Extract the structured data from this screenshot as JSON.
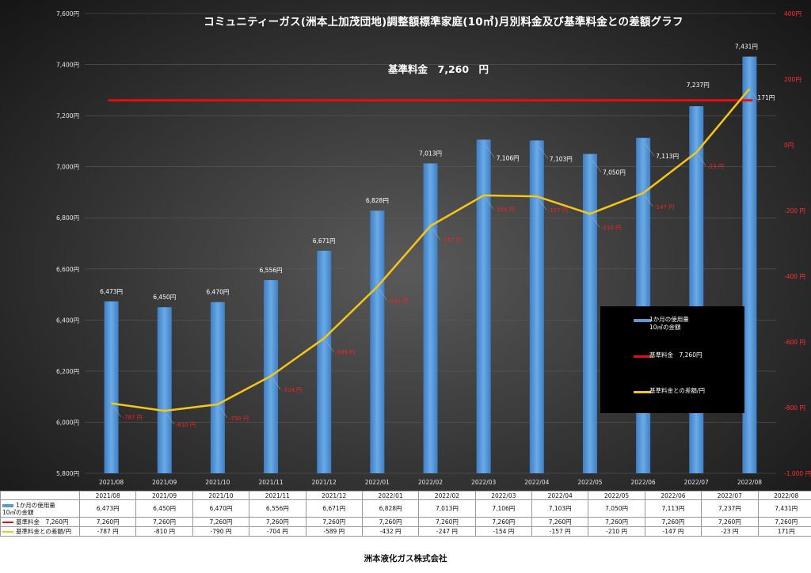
{
  "chart_data": {
    "type": "bar",
    "title": "コミュニティーガス(洲本上加茂団地)調整額標準家庭(10㎥)月別料金及び基準料金との差額グラフ",
    "annotation": "基準料金　7,260　円",
    "categories": [
      "2021/08",
      "2021/09",
      "2021/10",
      "2021/11",
      "2021/12",
      "2022/01",
      "2022/02",
      "2022/03",
      "2022/04",
      "2022/05",
      "2022/06",
      "2022/07",
      "2022/08"
    ],
    "series": [
      {
        "name": "1か月の使用量 10㎥の金額",
        "type": "bar",
        "axis": "left",
        "color": "#5b9bd5",
        "values": [
          6473,
          6450,
          6470,
          6556,
          6671,
          6828,
          7013,
          7106,
          7103,
          7050,
          7113,
          7237,
          7431
        ],
        "labels": [
          "6,473円",
          "6,450円",
          "6,470円",
          "6,556円",
          "6,671円",
          "6,828円",
          "7,013円",
          "7,106円",
          "7,103円",
          "7,050円",
          "7,113円",
          "7,237円",
          "7,431円"
        ]
      },
      {
        "name": "基準料金　7,260円",
        "type": "line",
        "axis": "left",
        "color": "#e01010",
        "values": [
          7260,
          7260,
          7260,
          7260,
          7260,
          7260,
          7260,
          7260,
          7260,
          7260,
          7260,
          7260,
          7260
        ],
        "labels": [
          "7,260円",
          "7,260円",
          "7,260円",
          "7,260円",
          "7,260円",
          "7,260円",
          "7,260円",
          "7,260円",
          "7,260円",
          "7,260円",
          "7,260円",
          "7,260円",
          "7,260円"
        ]
      },
      {
        "name": "基準料金との差額/円",
        "type": "line",
        "axis": "right",
        "color": "#f5c518",
        "values": [
          -787,
          -810,
          -790,
          -704,
          -589,
          -432,
          -247,
          -154,
          -157,
          -210,
          -147,
          -23,
          171
        ],
        "labels": [
          "-787 円",
          "-810 円",
          "-790 円",
          "-704 円",
          "-589 円",
          "-432 円",
          "-247 円",
          "-154 円",
          "-157 円",
          "-210 円",
          "-147 円",
          "-23 円",
          "171円"
        ]
      }
    ],
    "left_axis": {
      "ylim": [
        5800,
        7600
      ],
      "ticks": [
        5800,
        6000,
        6200,
        6400,
        6600,
        6800,
        7000,
        7200,
        7400,
        7600
      ],
      "tick_labels": [
        "5,800円",
        "6,000円",
        "6,200円",
        "6,400円",
        "6,600円",
        "6,800円",
        "7,000円",
        "7,200円",
        "7,400円",
        "7,600円"
      ]
    },
    "right_axis": {
      "ylim": [
        -1000,
        400
      ],
      "ticks": [
        -1000,
        -800,
        -600,
        -400,
        -200,
        0,
        200,
        400
      ],
      "tick_labels": [
        "-1,000 円",
        "-800 円",
        "-600 円",
        "-400 円",
        "-200 円",
        "0円",
        "200円",
        "400円"
      ],
      "color": "#ff3030"
    },
    "legend": {
      "placement": "inside-right",
      "background": "#000000",
      "items": [
        "1か月の使用量\n10㎥の金額",
        "基準料金　7,260円",
        "基準料金との差額/円"
      ]
    }
  },
  "table": {
    "row_labels": [
      "1か月の使用量\n10㎥の金額",
      "基準料金　7,260円",
      "基準料金との差額/円"
    ]
  },
  "footer": "洲本液化ガス株式会社"
}
